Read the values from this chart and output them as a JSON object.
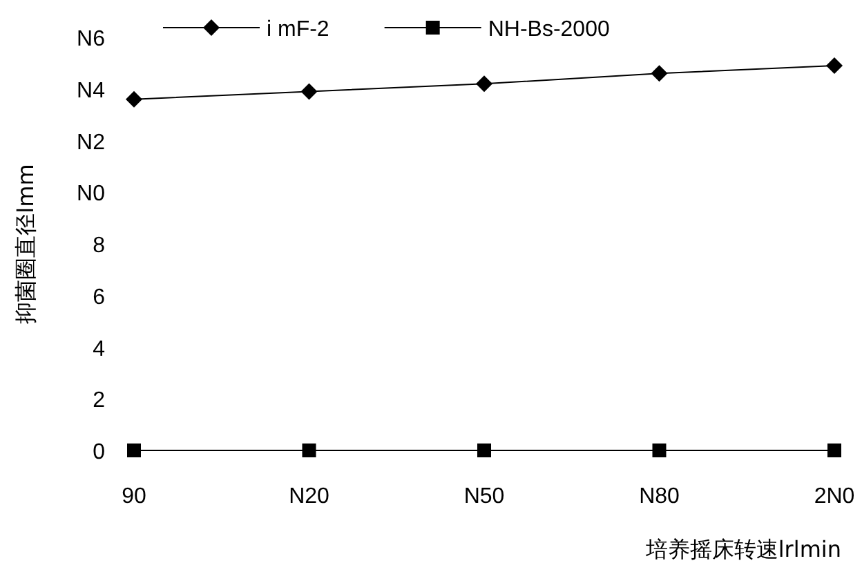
{
  "chart_data": {
    "type": "line",
    "xlabel": "培养摇床转速lrlmin",
    "ylabel": "抑菌圈直径lmm",
    "categories": [
      "90",
      "N20",
      "N50",
      "N80",
      "2N0"
    ],
    "series": [
      {
        "name": "i mF-2",
        "color": "#000000",
        "marker": "diamond",
        "values": [
          13.6,
          13.9,
          14.2,
          14.6,
          14.9
        ]
      },
      {
        "name": "NH-Bs-2000",
        "color": "#000000",
        "marker": "square",
        "values": [
          0,
          0,
          0,
          0,
          0
        ]
      }
    ],
    "ylim": [
      0,
      16
    ],
    "yticks": [
      0,
      2,
      4,
      6,
      8,
      {
        "value": 10,
        "label": "N0"
      },
      {
        "value": 12,
        "label": "N2"
      },
      {
        "value": 14,
        "label": "N4"
      },
      {
        "value": 16,
        "label": "N6"
      }
    ],
    "legend": "top",
    "grid": false
  }
}
